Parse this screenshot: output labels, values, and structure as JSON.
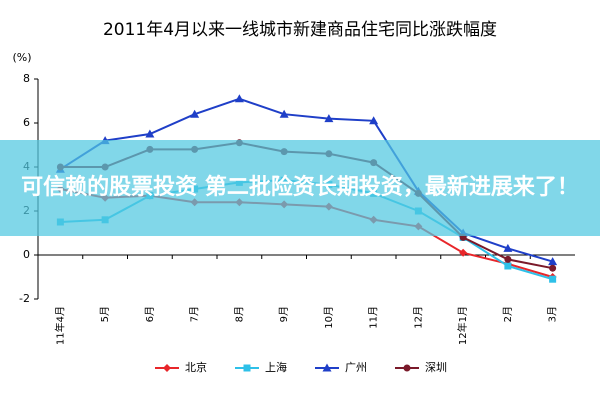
{
  "chart_data": {
    "type": "line",
    "title": "2011年4月以来一线城市新建商品住宅同比涨跌幅度",
    "y_label": "(%)",
    "categories": [
      "11年4月",
      "5月",
      "6月",
      "7月",
      "8月",
      "9月",
      "10月",
      "11月",
      "12月",
      "12年1月",
      "2月",
      "3月"
    ],
    "series": [
      {
        "name": "北京",
        "color": "#e8262a",
        "marker": "diamond",
        "values": [
          3.0,
          2.6,
          2.7,
          2.4,
          2.4,
          2.3,
          2.2,
          1.6,
          1.3,
          0.1,
          -0.4,
          -1.0
        ]
      },
      {
        "name": "上海",
        "color": "#2ec0e8",
        "marker": "square",
        "values": [
          1.5,
          1.6,
          2.7,
          3.0,
          3.3,
          3.4,
          3.2,
          2.8,
          2.0,
          0.8,
          -0.5,
          -1.1
        ]
      },
      {
        "name": "广州",
        "color": "#1f3fc8",
        "marker": "triangle",
        "values": [
          3.9,
          5.2,
          5.5,
          6.4,
          7.1,
          6.4,
          6.2,
          6.1,
          2.9,
          1.0,
          0.3,
          -0.3
        ]
      },
      {
        "name": "深圳",
        "color": "#7a1a2a",
        "marker": "circle",
        "values": [
          4.0,
          4.0,
          4.8,
          4.8,
          5.1,
          4.7,
          4.6,
          4.2,
          2.8,
          0.8,
          -0.2,
          -0.6
        ]
      }
    ],
    "ylim": [
      -2,
      8
    ],
    "yticks": [
      -2,
      0,
      2,
      4,
      6,
      8
    ]
  },
  "banner": "可信赖的股票投资 第二批险资长期投资，最新进展来了！"
}
